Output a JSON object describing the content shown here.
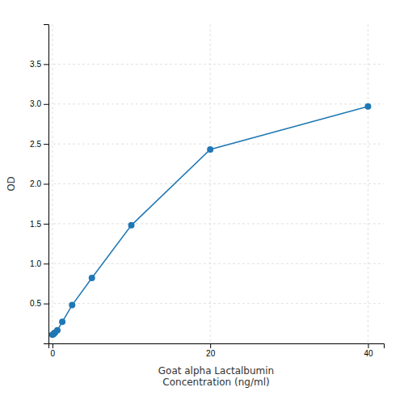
{
  "chart_data": {
    "type": "line",
    "x": [
      0.0,
      0.156,
      0.312,
      0.625,
      1.25,
      2.5,
      5.0,
      10.0,
      20.0,
      40.0
    ],
    "values": [
      0.108,
      0.118,
      0.135,
      0.165,
      0.27,
      0.48,
      0.82,
      1.48,
      2.43,
      2.97
    ],
    "marker": "circle",
    "xlabel": "Goat alpha Lactalbumin\nConcentration (ng/ml)",
    "ylabel": "OD",
    "xlim": [
      -0.5,
      42
    ],
    "ylim": [
      0,
      4.0
    ],
    "xticks": [
      0,
      20,
      40
    ],
    "yticks": [
      0.5,
      {
        "value": 1.0,
        "label": "1.0"
      },
      1.5,
      {
        "value": 2.0,
        "label": "2.0"
      },
      2.5,
      {
        "value": 3.0,
        "label": "3.0"
      },
      3.5
    ],
    "grid": true
  }
}
